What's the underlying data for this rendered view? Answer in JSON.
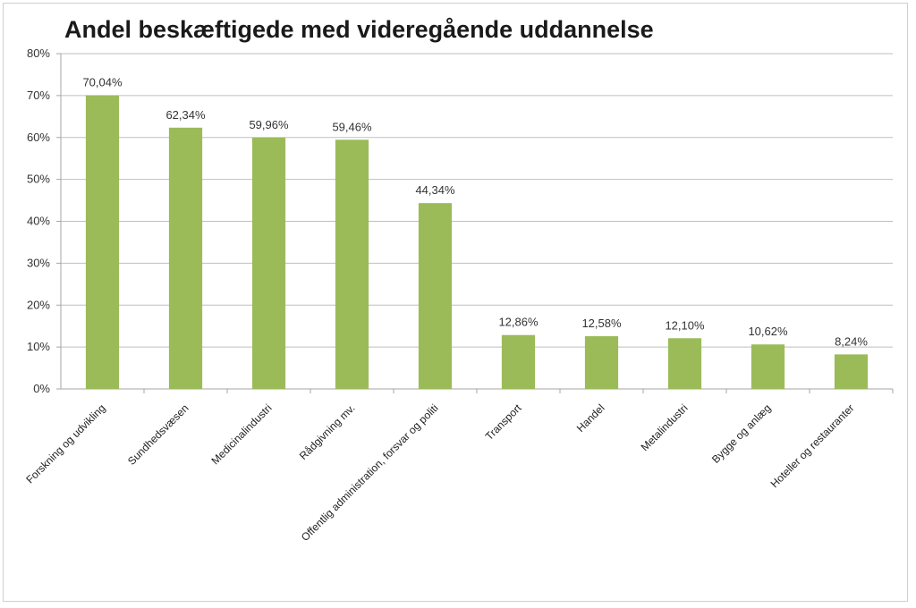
{
  "chart_data": {
    "type": "bar",
    "title": "Andel beskæftigede med videregående uddannelse",
    "xlabel": "",
    "ylabel": "",
    "ylim": [
      0,
      80
    ],
    "yticks": [
      0,
      10,
      20,
      30,
      40,
      50,
      60,
      70,
      80
    ],
    "ytick_labels": [
      "0%",
      "10%",
      "20%",
      "30%",
      "40%",
      "50%",
      "60%",
      "70%",
      "80%"
    ],
    "grid": true,
    "legend": "none",
    "categories": [
      "Forskning og udvikling",
      "Sundhedsvæsen",
      "Medicinalindustri",
      "Rådgivning mv.",
      "Offentlig administration, forsvar og politi",
      "Transport",
      "Handel",
      "Metalindustri",
      "Bygge og anlæg",
      "Hoteller og restauranter"
    ],
    "values": [
      70.04,
      62.34,
      59.96,
      59.46,
      44.34,
      12.86,
      12.58,
      12.1,
      10.62,
      8.24
    ],
    "data_labels": [
      "70,04%",
      "62,34%",
      "59,96%",
      "59,46%",
      "44,34%",
      "12,86%",
      "12,58%",
      "12,10%",
      "10,62%",
      "8,24%"
    ],
    "bar_color": "#9bbb59",
    "grid_color": "#bfbfbf",
    "axis_color": "#a6a6a6"
  }
}
